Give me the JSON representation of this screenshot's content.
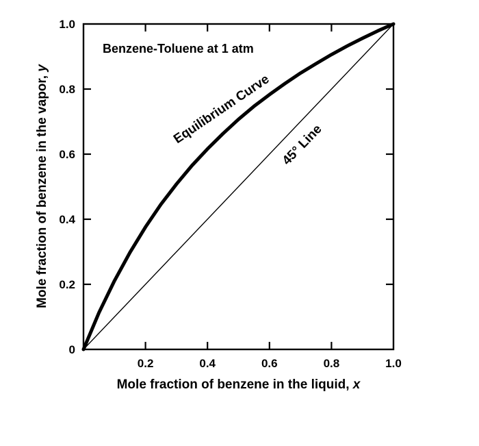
{
  "chart_data": {
    "type": "line",
    "title": "Benzene-Toluene at 1 atm",
    "x_axis": {
      "label": "Mole fraction of benzene in the liquid, ",
      "var": "x",
      "tick_marks": [
        0.2,
        0.4,
        0.6,
        0.8
      ],
      "tick_labels": [
        {
          "value": 0.2,
          "text": "0.2"
        },
        {
          "value": 0.4,
          "text": "0.4"
        },
        {
          "value": 0.6,
          "text": "0.6"
        },
        {
          "value": 0.8,
          "text": "0.8"
        },
        {
          "value": 1.0,
          "text": "1.0"
        }
      ]
    },
    "y_axis": {
      "label": "Mole fraction of benzene in the vapor, ",
      "var": "y",
      "tick_marks": [
        0.2,
        0.4,
        0.6,
        0.8
      ],
      "tick_labels": [
        {
          "value": 0,
          "text": "0"
        },
        {
          "value": 0.2,
          "text": "0.2"
        },
        {
          "value": 0.4,
          "text": "0.4"
        },
        {
          "value": 0.6,
          "text": "0.6"
        },
        {
          "value": 0.8,
          "text": "0.8"
        },
        {
          "value": 1.0,
          "text": "1.0"
        }
      ]
    },
    "xlim": [
      0,
      1
    ],
    "ylim": [
      0,
      1
    ],
    "grid": false,
    "legend": "none",
    "series": [
      {
        "name": "Equilibrium Curve",
        "x": [
          0,
          0.05,
          0.1,
          0.15,
          0.2,
          0.25,
          0.3,
          0.35,
          0.4,
          0.45,
          0.5,
          0.55,
          0.6,
          0.65,
          0.7,
          0.75,
          0.8,
          0.85,
          0.9,
          0.95,
          1.0
        ],
        "y": [
          0,
          0.113,
          0.211,
          0.298,
          0.376,
          0.446,
          0.508,
          0.565,
          0.616,
          0.663,
          0.707,
          0.747,
          0.783,
          0.817,
          0.849,
          0.878,
          0.906,
          0.932,
          0.956,
          0.979,
          1.0
        ]
      },
      {
        "name": "45° Line",
        "x": [
          0,
          1
        ],
        "y": [
          0,
          1
        ]
      }
    ],
    "annotations": [
      {
        "text": "Equilibrium Curve"
      },
      {
        "text": "45° Line"
      }
    ],
    "colors": {
      "line": "#000000",
      "background": "#ffffff"
    }
  }
}
